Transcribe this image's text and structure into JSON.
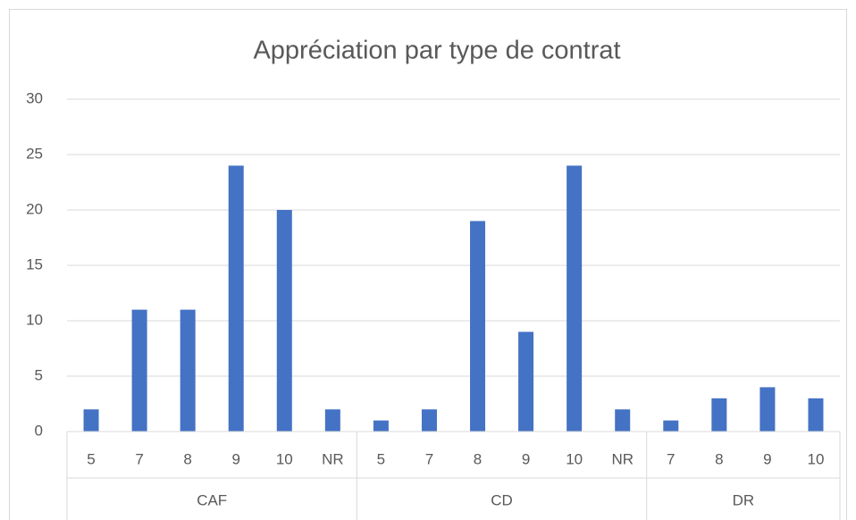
{
  "chart_data": {
    "type": "bar",
    "title": "Appréciation par type de contrat",
    "groups": [
      {
        "name": "CAF",
        "categories": [
          "5",
          "7",
          "8",
          "9",
          "10",
          "NR"
        ],
        "values": [
          2,
          11,
          11,
          24,
          20,
          2
        ]
      },
      {
        "name": "CD",
        "categories": [
          "5",
          "7",
          "8",
          "9",
          "10",
          "NR"
        ],
        "values": [
          1,
          2,
          19,
          9,
          24,
          2
        ]
      },
      {
        "name": "DR",
        "categories": [
          "7",
          "8",
          "9",
          "10"
        ],
        "values": [
          1,
          3,
          4,
          3
        ]
      }
    ],
    "color": "#4472c4",
    "ylim": [
      0,
      30
    ],
    "yticks": [
      0,
      5,
      10,
      15,
      20,
      25,
      30
    ],
    "grid": true
  }
}
